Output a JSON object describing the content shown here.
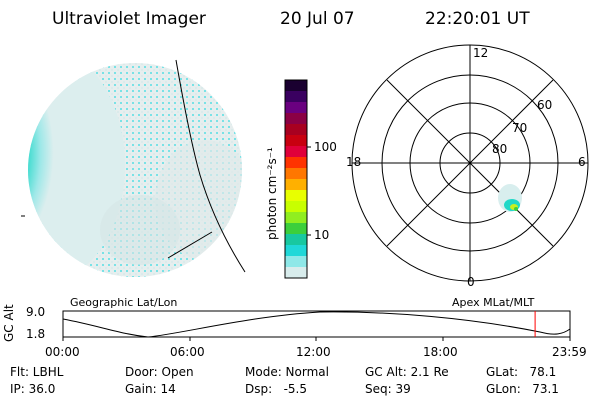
{
  "header": {
    "title": "Ultraviolet Imager",
    "date": "20 Jul 07",
    "time": "22:20:01 UT"
  },
  "colorbar": {
    "unit_label": "photon cm⁻²s⁻¹",
    "ticks": [
      "100",
      "10"
    ],
    "colors": [
      "#1a0030",
      "#3a0060",
      "#6a0080",
      "#8b0044",
      "#a80020",
      "#c80010",
      "#e0003a",
      "#ff3300",
      "#ff7700",
      "#ffb000",
      "#e8ff00",
      "#c8ff00",
      "#90ee20",
      "#3ccf3c",
      "#18c8a0",
      "#20d8d8",
      "#8ee8e8",
      "#d8ecec"
    ]
  },
  "polar": {
    "hour_labels": [
      "12",
      "18",
      "6",
      "0"
    ],
    "lat_labels": [
      "60",
      "70",
      "80"
    ]
  },
  "labels": {
    "left_frame": "Geographic Lat/Lon",
    "right_frame": "Apex MLat/MLT"
  },
  "timeline": {
    "axis_title": "GC Alt",
    "y_ticks": [
      "9.0",
      "1.8"
    ],
    "x_ticks": [
      "00:00",
      "06:00",
      "12:00",
      "18:00",
      "23:59"
    ],
    "current_marker_time": "22:20",
    "marker_color": "#ff0000"
  },
  "status": {
    "filter": "Flt: LBHL",
    "ip": "IP: 36.0",
    "door": "Door: Open",
    "gain": "Gain: 14",
    "mode": "Mode: Normal",
    "dsp": "Dsp:   -5.5",
    "gc_alt": "GC Alt: 2.1 Re",
    "seq": "Seq: 39",
    "glat": "GLat:   78.1",
    "glon": "GLon:   73.1"
  }
}
